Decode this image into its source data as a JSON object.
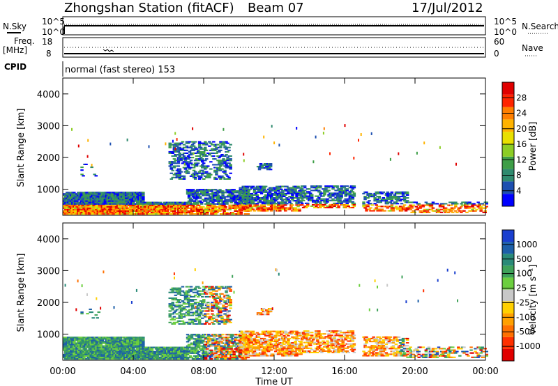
{
  "header": {
    "station": "Zhongshan Station (fitACF)",
    "beam": "Beam 07",
    "date": "17/Jul/2012"
  },
  "top_panels": {
    "nsky_label": "N.Sky",
    "nsky_ticks": [
      "10^5",
      "10^0"
    ],
    "nsearch_label": "N.Search",
    "nsearch_ticks": [
      "10^5",
      "10^0"
    ],
    "freq_label": "Freq.",
    "freq_unit": "[MHz]",
    "freq_ticks": [
      "18",
      "8"
    ],
    "nave_label": "Nave",
    "nave_ticks": [
      "60",
      "0"
    ],
    "cpid_label": "CPID",
    "cpid_text": "normal (fast stereo) 153"
  },
  "x_axis": {
    "label": "Time UT",
    "ticks": [
      "00:00",
      "04:00",
      "08:00",
      "12:00",
      "16:00",
      "20:00",
      "00:00"
    ]
  },
  "chart_data": [
    {
      "type": "heatmap",
      "panel": "power",
      "ylabel": "Slant Range [km]",
      "ylim": [
        180,
        4500
      ],
      "yticks": [
        "1000",
        "2000",
        "3000",
        "4000"
      ],
      "xlim_hours": [
        0,
        24
      ],
      "colorbar": {
        "label": "Power [dB]",
        "ticks": [
          "4",
          "8",
          "12",
          "16",
          "20",
          "24",
          "28"
        ],
        "colors": [
          "#0000ff",
          "#1d4fb0",
          "#2f8a6e",
          "#3e9e47",
          "#8ccd25",
          "#e8e000",
          "#ffb300",
          "#ff7f00",
          "#ff2400",
          "#e00000"
        ]
      }
    },
    {
      "type": "heatmap",
      "panel": "velocity",
      "ylabel": "Slant Range [km]",
      "ylim": [
        180,
        4500
      ],
      "yticks": [
        "1000",
        "2000",
        "3000",
        "4000"
      ],
      "xlim_hours": [
        0,
        24
      ],
      "colorbar": {
        "label": "Velocity [m s⁻¹]",
        "ticks": [
          "1000",
          "500",
          "100",
          "25",
          "-25",
          "-100",
          "-500",
          "-1000"
        ],
        "colors": [
          "#1a3fcf",
          "#1d5fa8",
          "#2a8a78",
          "#3fa25a",
          "#6ccf3f",
          "#c8c8c8",
          "#ffd000",
          "#ffa000",
          "#ff7000",
          "#ff3000",
          "#e00000"
        ]
      }
    }
  ]
}
